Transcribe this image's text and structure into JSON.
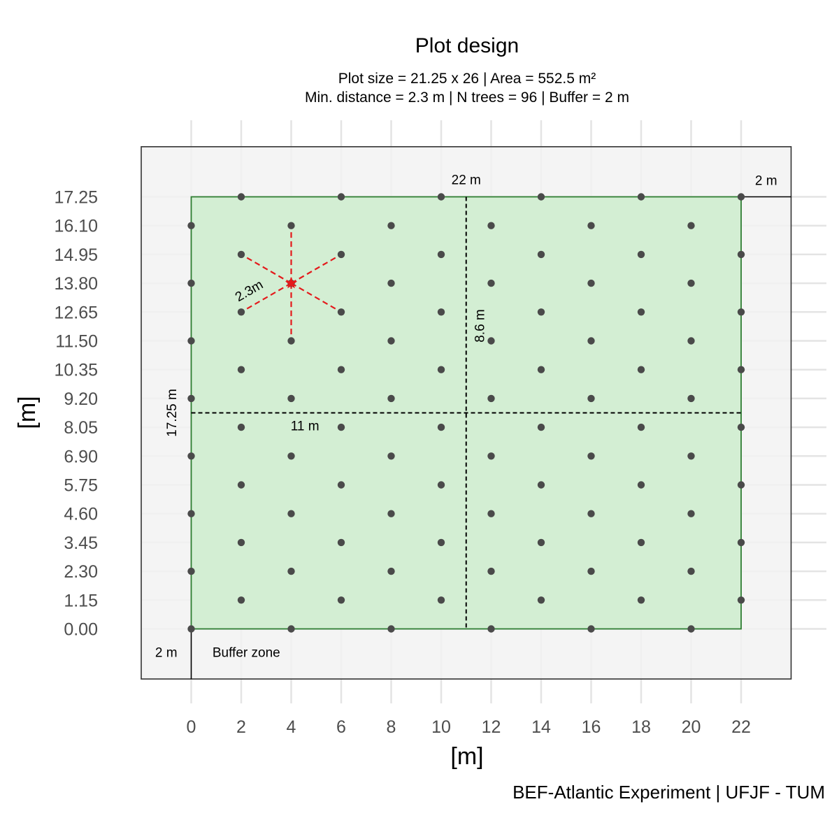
{
  "chart_data": {
    "type": "scatter",
    "title": "Plot design",
    "subtitle_line1": "Plot size =  21.25 x 26 | Area =  552.5 m²",
    "subtitle_line2": "Min. distance = 2.3 m | N trees = 96 | Buffer = 2 m",
    "xlabel": "[m]",
    "ylabel": "[m]",
    "caption": "BEF-Atlantic Experiment | UFJF - TUM",
    "xlim": [
      -2,
      24
    ],
    "ylim": [
      -2,
      19.25
    ],
    "x_ticks": [
      "0",
      "2",
      "4",
      "6",
      "8",
      "10",
      "12",
      "14",
      "16",
      "18",
      "20",
      "22"
    ],
    "y_ticks": [
      "0.00",
      "1.15",
      "2.30",
      "3.45",
      "4.60",
      "5.75",
      "6.90",
      "8.05",
      "9.20",
      "10.35",
      "11.50",
      "12.65",
      "13.80",
      "14.95",
      "16.10",
      "17.25"
    ],
    "plot_area": {
      "x": [
        0,
        22
      ],
      "y": [
        0,
        17.25
      ]
    },
    "buffer_area": {
      "x": [
        -2,
        24
      ],
      "y": [
        -2,
        19.25
      ]
    },
    "grid": true,
    "colors": {
      "panel_bg": "#f2f2f2",
      "panel_border": "#333333",
      "grid": "#e4e4e4",
      "plot_fill": "#d3eed3",
      "plot_border": "#2e7d32",
      "point": "#4a4a4a",
      "highlight": "#e41a1c",
      "dashed": "#000000"
    },
    "trees": {
      "rows_y": [
        0,
        1.15,
        2.3,
        3.45,
        4.6,
        5.75,
        6.9,
        8.05,
        9.2,
        10.35,
        11.5,
        12.65,
        13.8,
        14.95,
        16.1,
        17.25
      ],
      "even_row_x": [
        0,
        4,
        8,
        12,
        16,
        20
      ],
      "odd_row_x": [
        2,
        6,
        10,
        14,
        18,
        22
      ]
    },
    "highlight_tree": {
      "x": 4,
      "y": 13.8
    },
    "neighbors": [
      {
        "x": 4,
        "y": 16.1
      },
      {
        "x": 4,
        "y": 11.5
      },
      {
        "x": 2,
        "y": 14.95
      },
      {
        "x": 6,
        "y": 14.95
      },
      {
        "x": 2,
        "y": 12.65
      },
      {
        "x": 6,
        "y": 12.65
      }
    ],
    "midlines": {
      "x": 11,
      "y": 8.625
    },
    "annotations": {
      "width_label": "22 m",
      "height_label": "17.25 m",
      "half_width_label": "11 m",
      "half_height_label": "8.6 m",
      "distance_label": "2.3m",
      "buffer_left_label": "2 m",
      "buffer_right_label": "2 m",
      "buffer_zone_label": "Buffer zone"
    }
  }
}
